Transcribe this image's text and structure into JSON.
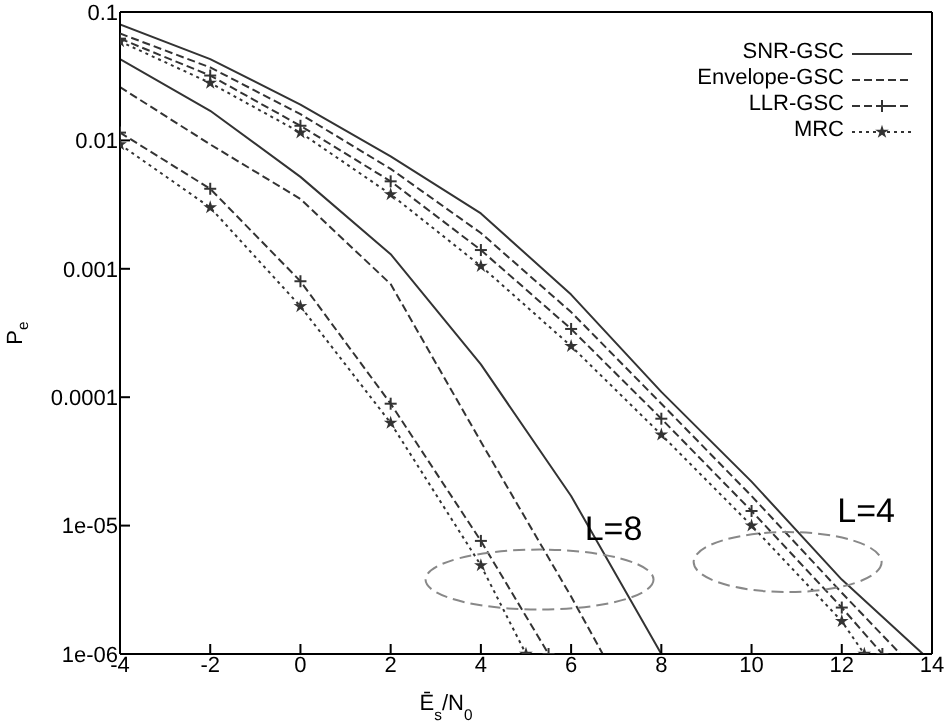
{
  "chart_data": {
    "type": "line",
    "xlabel": "Ē$_{s}$/N$_{0}$",
    "ylabel": "P$_{e}$",
    "xlim": [
      -4,
      14
    ],
    "xticks": [
      -4,
      -2,
      0,
      2,
      4,
      6,
      8,
      10,
      12,
      14
    ],
    "ylim": [
      1e-06,
      0.1
    ],
    "yticks": [
      {
        "value": 1e-06,
        "label": "1e-06"
      },
      {
        "value": 1e-05,
        "label": "1e-05"
      },
      0.0001,
      0.001,
      0.01,
      0.1
    ],
    "log": "y",
    "grid": false,
    "legend": "top right",
    "series": [
      {
        "name": "SNR-GSC",
        "color": "#333333",
        "line_style": "solid",
        "marker": "none",
        "x": [
          -4,
          -2,
          0,
          2,
          4,
          6,
          8,
          10,
          12,
          13.8
        ],
        "values": [
          0.08,
          0.043,
          0.019,
          0.0075,
          0.0027,
          0.00063,
          0.00011,
          2.2e-05,
          3.8e-06,
          1e-06
        ]
      },
      {
        "name": "Envelope-GSC",
        "color": "#333333",
        "line_style": "dashed",
        "marker": "none",
        "x": [
          -4,
          -2,
          0,
          2,
          4,
          6,
          8,
          10,
          12,
          13.3
        ],
        "values": [
          0.068,
          0.037,
          0.016,
          0.006,
          0.0019,
          0.00046,
          8.9e-05,
          1.7e-05,
          3e-06,
          1e-06
        ]
      },
      {
        "name": "LLR-GSC",
        "color": "#333333",
        "line_style": "dashed",
        "marker": "cross",
        "x": [
          -4,
          -2,
          0,
          2,
          4,
          6,
          8,
          10,
          12,
          12.9
        ],
        "values": [
          0.062,
          0.032,
          0.013,
          0.0048,
          0.0014,
          0.00034,
          6.8e-05,
          1.3e-05,
          2.3e-06,
          1e-06
        ]
      },
      {
        "name": "MRC",
        "color": "#333333",
        "line_style": "dotted",
        "marker": "star",
        "x": [
          -4,
          -2,
          0,
          2,
          4,
          6,
          8,
          10,
          12,
          12.5
        ],
        "values": [
          0.059,
          0.028,
          0.0115,
          0.0038,
          0.00105,
          0.00025,
          5.1e-05,
          1e-05,
          1.8e-06,
          1e-06
        ]
      },
      {
        "color": "#333333",
        "line_style": "solid",
        "marker": "none",
        "x": [
          -4,
          -2,
          0,
          2,
          4,
          6,
          8
        ],
        "values": [
          0.043,
          0.017,
          0.0052,
          0.0013,
          0.00018,
          1.7e-05,
          1e-06
        ]
      },
      {
        "color": "#333333",
        "line_style": "dashed",
        "marker": "none",
        "x": [
          -4,
          -2,
          0,
          2,
          4,
          6,
          6.7
        ],
        "values": [
          0.026,
          0.0093,
          0.0035,
          0.00076,
          4.5e-05,
          2.8e-06,
          1e-06
        ]
      },
      {
        "color": "#333333",
        "line_style": "dashed",
        "marker": "cross",
        "x": [
          -4,
          -2,
          0,
          2,
          4,
          5.5
        ],
        "values": [
          0.0115,
          0.0042,
          0.0008,
          8.9e-05,
          7.6e-06,
          1e-06
        ]
      },
      {
        "color": "#333333",
        "line_style": "dotted",
        "marker": "star",
        "x": [
          -4,
          -2,
          0,
          2,
          4,
          5
        ],
        "values": [
          0.0093,
          0.003,
          0.00051,
          6.3e-05,
          4.9e-06,
          1e-06
        ]
      }
    ],
    "annotations": [
      "L=8",
      "L=4"
    ]
  }
}
